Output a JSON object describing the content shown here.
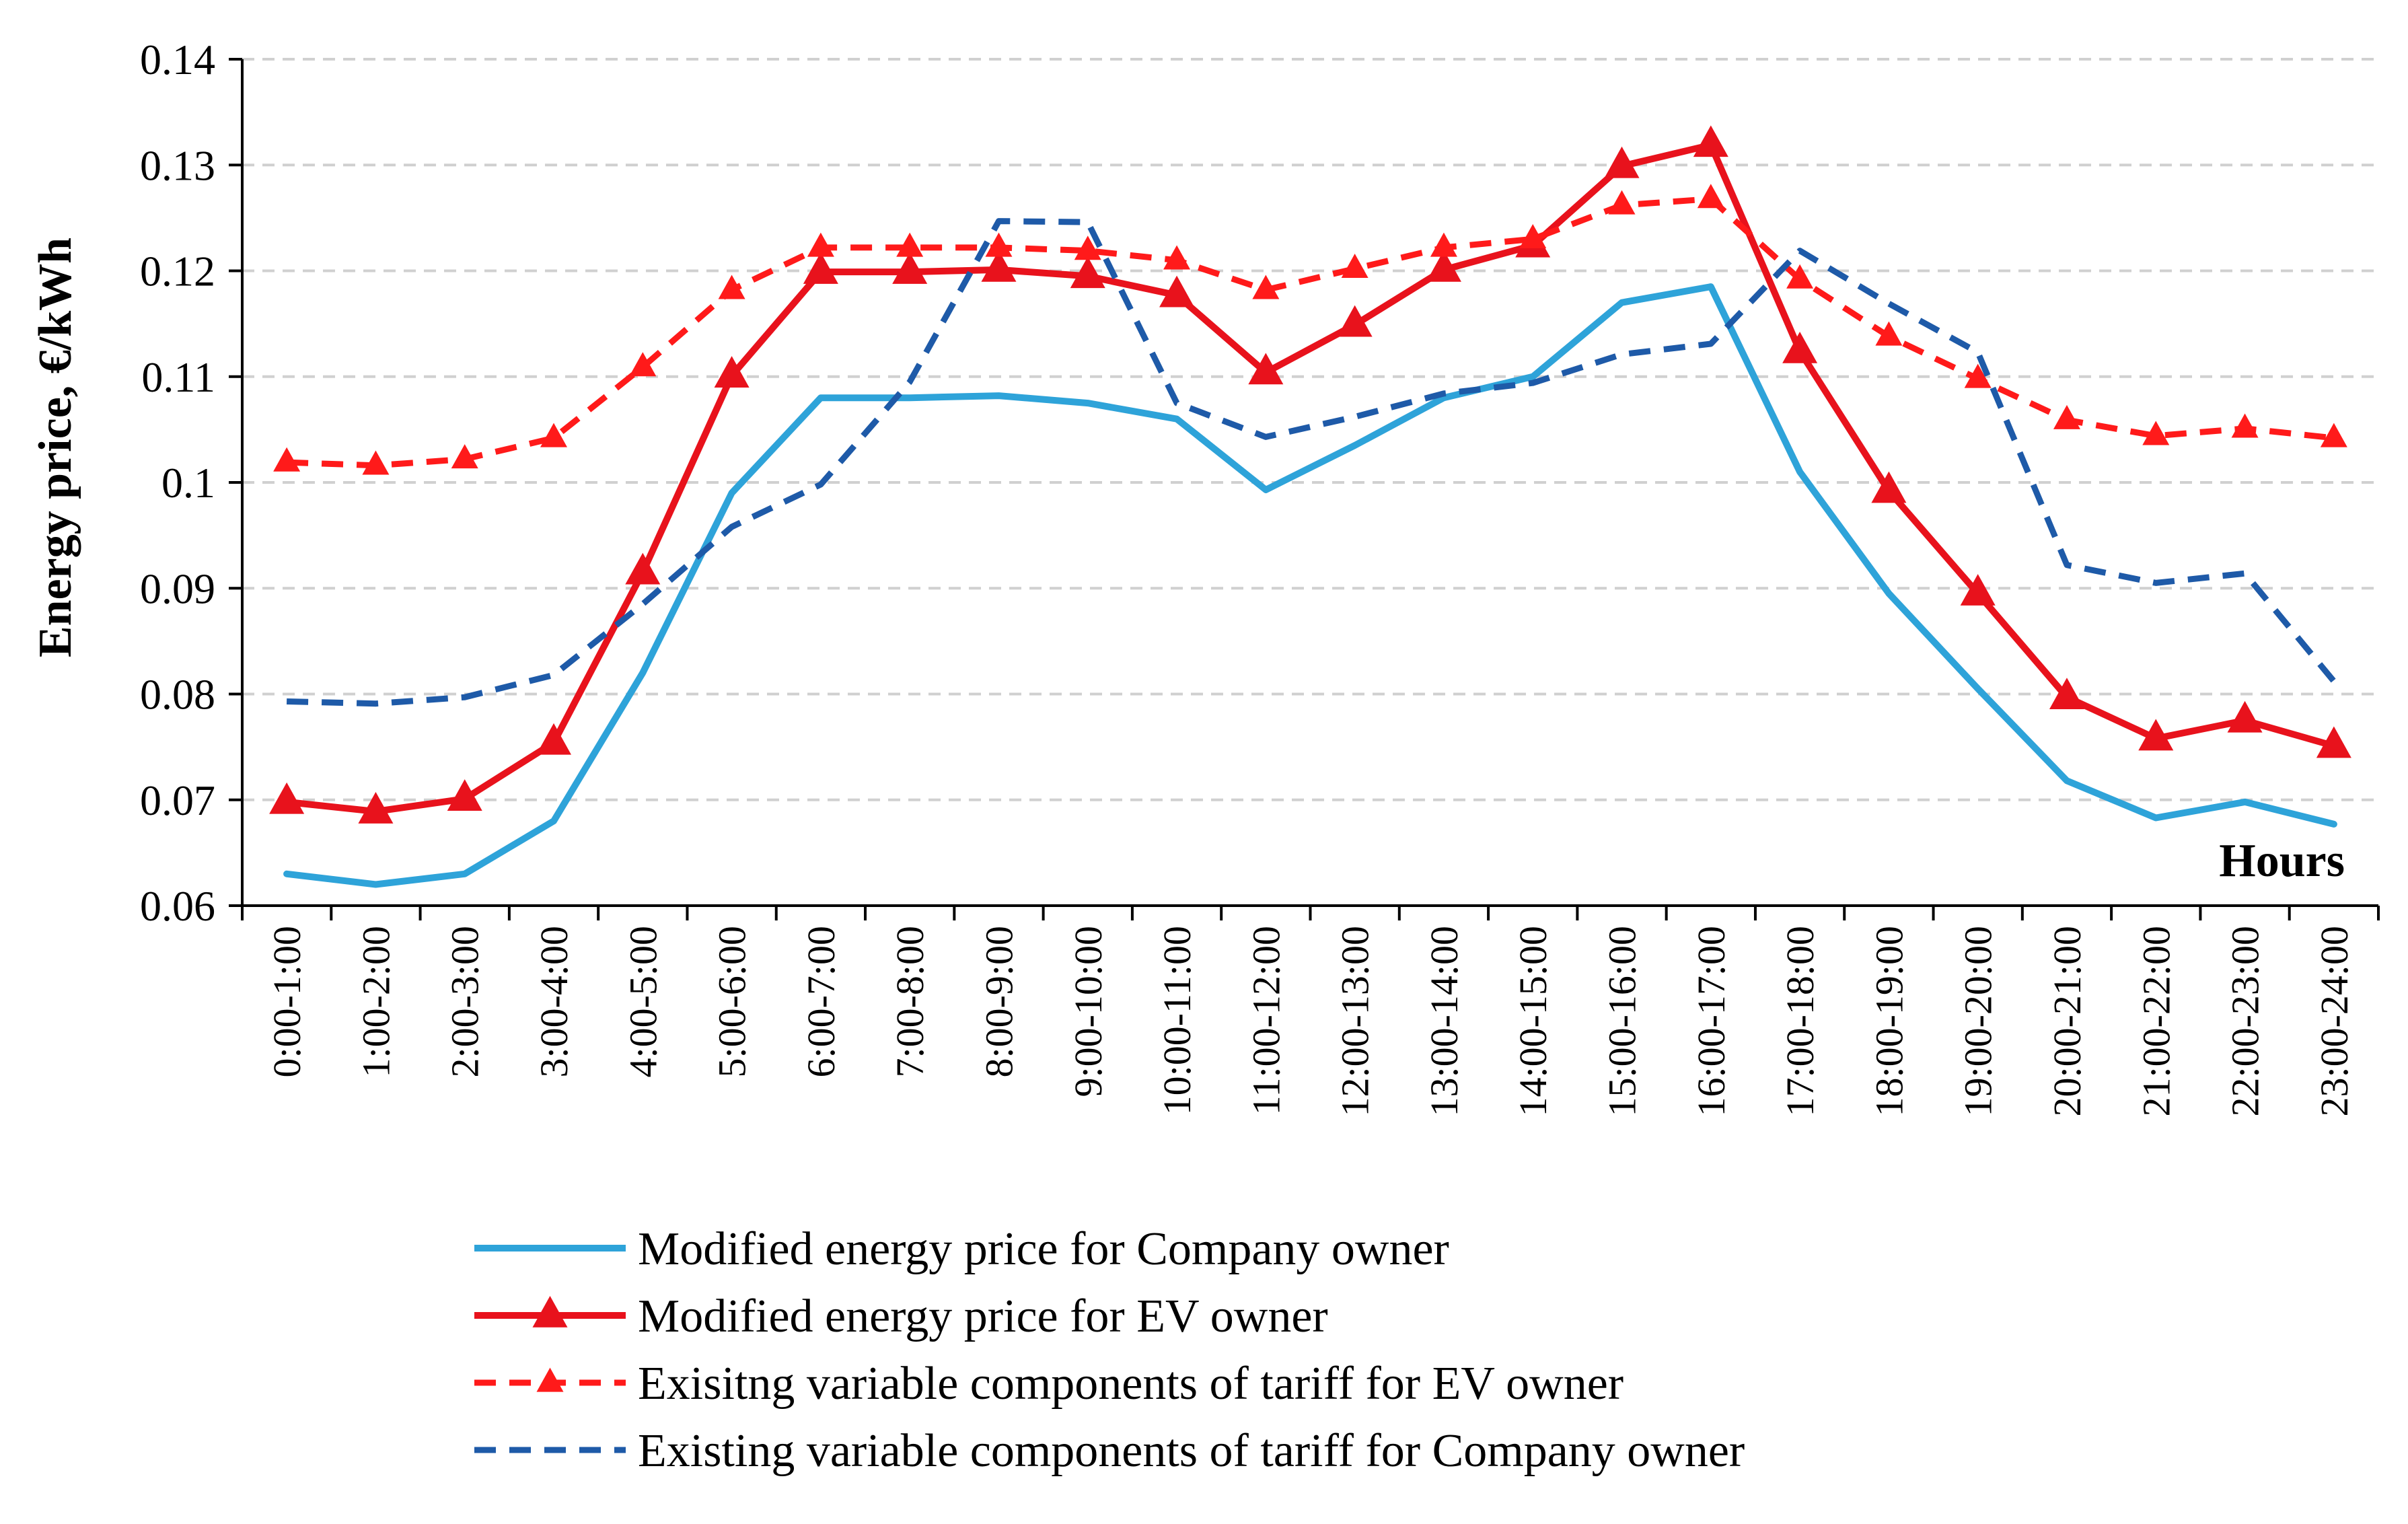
{
  "chart_data": {
    "type": "line",
    "title": "",
    "xlabel": "Hours",
    "ylabel": "Energy price, €/kWh",
    "ylim": [
      0.06,
      0.14
    ],
    "yticks": [
      "0.06",
      "0.07",
      "0.08",
      "0.09",
      "0.1",
      "0.11",
      "0.12",
      "0.13",
      "0.14"
    ],
    "grid": true,
    "legend_position": "bottom",
    "categories": [
      "0:00-1:00",
      "1:00-2:00",
      "2:00-3:00",
      "3:00-4:00",
      "4:00-5:00",
      "5:00-6:00",
      "6:00-7:00",
      "7:00-8:00",
      "8:00-9:00",
      "9:00-10:00",
      "10:00-11:00",
      "11:00-12:00",
      "12:00-13:00",
      "13:00-14:00",
      "14:00-15:00",
      "15:00-16:00",
      "16:00-17:00",
      "17:00-18:00",
      "18:00-19:00",
      "19:00-20:00",
      "20:00-21:00",
      "21:00-22:00",
      "22:00-23:00",
      "23:00-24:00"
    ],
    "series": [
      {
        "name": "Modified energy price for Company owner",
        "color": "#2ea3d9",
        "style": "solid",
        "marker": "none",
        "values": [
          0.063,
          0.062,
          0.063,
          0.068,
          0.082,
          0.099,
          0.108,
          0.108,
          0.1082,
          0.1075,
          0.106,
          0.0993,
          0.1035,
          0.108,
          0.11,
          0.117,
          0.1185,
          0.101,
          0.0895,
          0.0805,
          0.0718,
          0.0683,
          0.0698,
          0.0677
        ]
      },
      {
        "name": "Modified energy price for EV owner",
        "color": "#e8121c",
        "style": "solid",
        "marker": "triangle",
        "values": [
          0.0698,
          0.0689,
          0.0701,
          0.0754,
          0.0915,
          0.1101,
          0.1199,
          0.1199,
          0.1201,
          0.1195,
          0.1177,
          0.1104,
          0.1149,
          0.1201,
          0.1224,
          0.1299,
          0.1319,
          0.1124,
          0.0992,
          0.0895,
          0.0797,
          0.0758,
          0.0775,
          0.0751
        ]
      },
      {
        "name": "Exisitng variable components of tariff for EV owner",
        "color": "#ff1a1a",
        "style": "dashed",
        "marker": "triangle",
        "values": [
          0.1019,
          0.1016,
          0.1022,
          0.1042,
          0.1109,
          0.1182,
          0.1222,
          0.1222,
          0.1222,
          0.1219,
          0.121,
          0.1182,
          0.1202,
          0.1222,
          0.123,
          0.1262,
          0.1268,
          0.1192,
          0.1138,
          0.1098,
          0.1059,
          0.1044,
          0.1051,
          0.1042
        ]
      },
      {
        "name": "Existing variable components of tariff for Company owner",
        "color": "#1e5aa8",
        "style": "dashed",
        "marker": "none",
        "values": [
          0.0793,
          0.0791,
          0.0797,
          0.0818,
          0.0885,
          0.0958,
          0.0998,
          0.1095,
          0.1247,
          0.1246,
          0.1075,
          0.1043,
          0.1062,
          0.1084,
          0.1094,
          0.1121,
          0.1131,
          0.1219,
          0.1169,
          0.1123,
          0.0922,
          0.0905,
          0.0914,
          0.0812
        ]
      }
    ]
  }
}
